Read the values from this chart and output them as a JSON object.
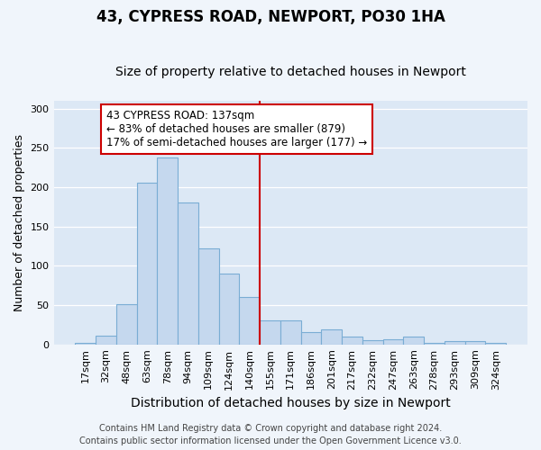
{
  "title": "43, CYPRESS ROAD, NEWPORT, PO30 1HA",
  "subtitle": "Size of property relative to detached houses in Newport",
  "xlabel": "Distribution of detached houses by size in Newport",
  "ylabel": "Number of detached properties",
  "categories": [
    "17sqm",
    "32sqm",
    "48sqm",
    "63sqm",
    "78sqm",
    "94sqm",
    "109sqm",
    "124sqm",
    "140sqm",
    "155sqm",
    "171sqm",
    "186sqm",
    "201sqm",
    "217sqm",
    "232sqm",
    "247sqm",
    "263sqm",
    "278sqm",
    "293sqm",
    "309sqm",
    "324sqm"
  ],
  "values": [
    2,
    11,
    51,
    206,
    238,
    181,
    122,
    90,
    60,
    30,
    30,
    16,
    19,
    10,
    5,
    6,
    10,
    2,
    4,
    4,
    2
  ],
  "bar_color": "#c5d8ee",
  "bar_edge_color": "#7aadd4",
  "vline_x_index": 8,
  "vline_color": "#cc0000",
  "annotation_text": "43 CYPRESS ROAD: 137sqm\n← 83% of detached houses are smaller (879)\n17% of semi-detached houses are larger (177) →",
  "annotation_box_facecolor": "#ffffff",
  "annotation_box_edgecolor": "#cc0000",
  "footer": "Contains HM Land Registry data © Crown copyright and database right 2024.\nContains public sector information licensed under the Open Government Licence v3.0.",
  "ylim": [
    0,
    310
  ],
  "title_fontsize": 12,
  "subtitle_fontsize": 10,
  "tick_fontsize": 8,
  "ylabel_fontsize": 9,
  "xlabel_fontsize": 10,
  "footer_fontsize": 7,
  "bg_color": "#dce8f5",
  "plot_bg_color": "#dce8f5",
  "fig_bg_color": "#f0f5fb"
}
